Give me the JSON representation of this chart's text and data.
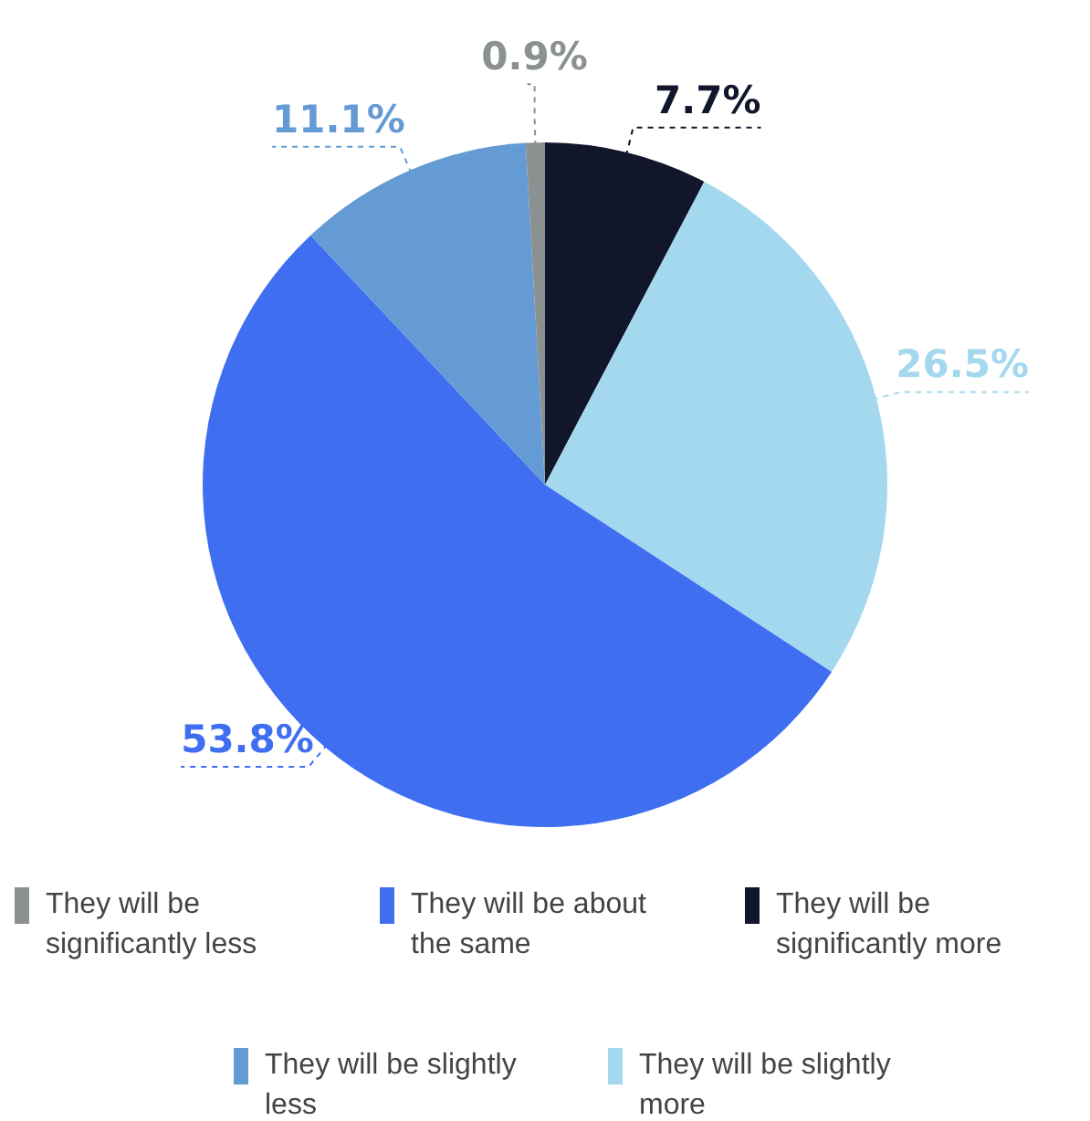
{
  "chart_data": {
    "type": "pie",
    "categories": [
      "They will be significantly more",
      "They will be slightly more",
      "They will be about the same",
      "They will be slightly less",
      "They will be significantly less"
    ],
    "values": [
      7.7,
      26.5,
      53.8,
      11.1,
      0.9
    ],
    "colors": [
      "#12162b",
      "#a3d8ef",
      "#3f6ff0",
      "#659bd4",
      "#8a9190"
    ],
    "value_labels": [
      "7.7%",
      "26.5%",
      "53.8%",
      "11.1%",
      "0.9%"
    ],
    "legend": "bottom"
  }
}
